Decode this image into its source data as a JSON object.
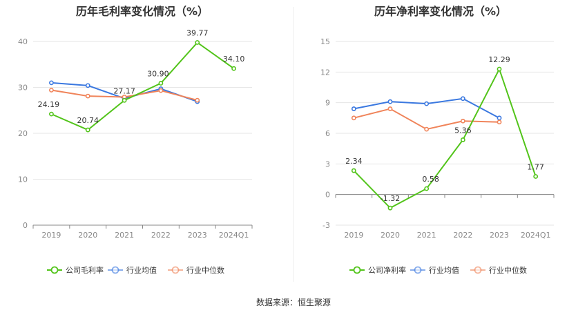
{
  "source": "数据来源：恒生聚源",
  "chart_data": [
    {
      "type": "line",
      "title": "历年毛利率变化情况（%）",
      "categories": [
        "2019",
        "2020",
        "2021",
        "2022",
        "2023",
        "2024Q1"
      ],
      "ylim": [
        0,
        40
      ],
      "yticks": [
        0,
        10,
        20,
        30,
        40
      ],
      "grid": true,
      "legend_position": "bottom",
      "series": [
        {
          "name": "公司毛利率",
          "color": "#52c41a",
          "values": [
            24.19,
            20.74,
            27.17,
            30.9,
            39.77,
            34.1
          ],
          "labels": [
            "24.19",
            "20.74",
            "27.17",
            "30.90",
            "39.77",
            "34.10"
          ]
        },
        {
          "name": "行业均值",
          "color": "#3a78e0",
          "values": [
            31.0,
            30.4,
            27.6,
            29.7,
            26.9,
            null
          ]
        },
        {
          "name": "行业中位数",
          "color": "#f0845a",
          "values": [
            29.4,
            28.1,
            27.9,
            29.3,
            27.2,
            null
          ]
        }
      ]
    },
    {
      "type": "line",
      "title": "历年净利率变化情况（%）",
      "categories": [
        "2019",
        "2020",
        "2021",
        "2022",
        "2023",
        "2024Q1"
      ],
      "ylim": [
        -3,
        15
      ],
      "yticks": [
        -3,
        0,
        3,
        6,
        9,
        12,
        15
      ],
      "grid": true,
      "legend_position": "bottom",
      "series": [
        {
          "name": "公司净利率",
          "color": "#52c41a",
          "values": [
            2.34,
            -1.32,
            0.58,
            5.36,
            12.29,
            1.77
          ],
          "labels": [
            "2.34",
            "-1.32",
            "0.58",
            "5.36",
            "12.29",
            "1.77"
          ]
        },
        {
          "name": "行业均值",
          "color": "#3a78e0",
          "values": [
            8.4,
            9.1,
            8.9,
            9.4,
            7.5,
            null
          ]
        },
        {
          "name": "行业中位数",
          "color": "#f0845a",
          "values": [
            7.5,
            8.4,
            6.4,
            7.2,
            7.1,
            null
          ]
        }
      ]
    }
  ]
}
